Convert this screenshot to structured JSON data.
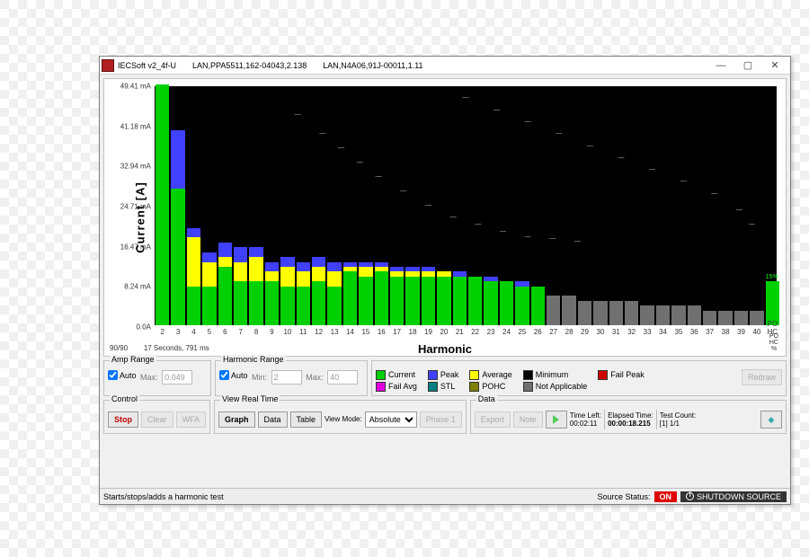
{
  "window": {
    "title": "IECSoft v2_4f-U",
    "conn1": "LAN,PPA5511,162-04043,2.138",
    "conn2": "LAN,N4A06,91J-00011,1.11",
    "min": "—",
    "max": "▢",
    "close": "✕"
  },
  "chart": {
    "ylabel": "Current [A]",
    "xlabel": "Harmonic",
    "ymax": 49.41,
    "yticks": [
      "49.41 mA",
      "41.18 mA",
      "32.94 mA",
      "24.71 mA",
      "16.47 mA",
      "8.24 mA",
      "0.0A"
    ],
    "xticks": [
      "2",
      "3",
      "4",
      "5",
      "6",
      "7",
      "8",
      "9",
      "10",
      "11",
      "12",
      "13",
      "14",
      "15",
      "16",
      "17",
      "18",
      "19",
      "20",
      "21",
      "22",
      "23",
      "24",
      "25",
      "26",
      "27",
      "28",
      "29",
      "30",
      "31",
      "32",
      "33",
      "34",
      "35",
      "36",
      "37",
      "38",
      "39",
      "40",
      "PO\nHC"
    ],
    "bars": [
      {
        "g": 49.4,
        "y": 0,
        "b": 0
      },
      {
        "g": 28,
        "y": 0,
        "b": 12
      },
      {
        "g": 8,
        "y": 10,
        "b": 2
      },
      {
        "g": 8,
        "y": 5,
        "b": 2
      },
      {
        "g": 12,
        "y": 2,
        "b": 3
      },
      {
        "g": 9,
        "y": 4,
        "b": 3
      },
      {
        "g": 9,
        "y": 5,
        "b": 2
      },
      {
        "g": 9,
        "y": 2,
        "b": 2
      },
      {
        "g": 8,
        "y": 4,
        "b": 2
      },
      {
        "g": 8,
        "y": 3,
        "b": 2
      },
      {
        "g": 9,
        "y": 3,
        "b": 2
      },
      {
        "g": 8,
        "y": 3,
        "b": 2
      },
      {
        "g": 11,
        "y": 1,
        "b": 1
      },
      {
        "g": 10,
        "y": 2,
        "b": 1
      },
      {
        "g": 11,
        "y": 1,
        "b": 1
      },
      {
        "g": 10,
        "y": 1,
        "b": 1
      },
      {
        "g": 10,
        "y": 1,
        "b": 1
      },
      {
        "g": 10,
        "y": 1,
        "b": 1
      },
      {
        "g": 10,
        "y": 1,
        "b": 0
      },
      {
        "g": 10,
        "y": 0,
        "b": 1
      },
      {
        "g": 10,
        "y": 0,
        "b": 0
      },
      {
        "g": 9,
        "y": 0,
        "b": 1
      },
      {
        "g": 9,
        "y": 0,
        "b": 0
      },
      {
        "g": 8,
        "y": 0,
        "b": 1
      },
      {
        "g": 8,
        "y": 0,
        "b": 0
      },
      {
        "g": 0,
        "y": 0,
        "b": 0,
        "gr": 6
      },
      {
        "g": 0,
        "y": 0,
        "b": 0,
        "gr": 6
      },
      {
        "g": 0,
        "y": 0,
        "b": 0,
        "gr": 5
      },
      {
        "g": 0,
        "y": 0,
        "b": 0,
        "gr": 5
      },
      {
        "g": 0,
        "y": 0,
        "b": 0,
        "gr": 5
      },
      {
        "g": 0,
        "y": 0,
        "b": 0,
        "gr": 5
      },
      {
        "g": 0,
        "y": 0,
        "b": 0,
        "gr": 4
      },
      {
        "g": 0,
        "y": 0,
        "b": 0,
        "gr": 4
      },
      {
        "g": 0,
        "y": 0,
        "b": 0,
        "gr": 4
      },
      {
        "g": 0,
        "y": 0,
        "b": 0,
        "gr": 4
      },
      {
        "g": 0,
        "y": 0,
        "b": 0,
        "gr": 3
      },
      {
        "g": 0,
        "y": 0,
        "b": 0,
        "gr": 3
      },
      {
        "g": 0,
        "y": 0,
        "b": 0,
        "gr": 3
      },
      {
        "g": 0,
        "y": 0,
        "b": 0,
        "gr": 3
      },
      {
        "g": 9,
        "y": 0,
        "b": 0,
        "label": "15%"
      }
    ],
    "markers_diag": [
      [
        23,
        88
      ],
      [
        27,
        80
      ],
      [
        30,
        74
      ],
      [
        33,
        68
      ],
      [
        36,
        62
      ],
      [
        40,
        56
      ],
      [
        44,
        50
      ],
      [
        48,
        45
      ],
      [
        52,
        42
      ],
      [
        56,
        39
      ],
      [
        60,
        37
      ],
      [
        64,
        36
      ],
      [
        68,
        35
      ]
    ],
    "markers_upper": [
      [
        50,
        95
      ],
      [
        55,
        90
      ],
      [
        60,
        85
      ],
      [
        65,
        80
      ],
      [
        70,
        75
      ],
      [
        75,
        70
      ],
      [
        80,
        65
      ],
      [
        85,
        60
      ],
      [
        90,
        55
      ],
      [
        94,
        48
      ],
      [
        96,
        42
      ]
    ],
    "colors": {
      "green": "#00d000",
      "yellow": "#ffff00",
      "blue": "#4040ff",
      "gray": "#707070",
      "magenta": "#e000e0",
      "teal": "#008080",
      "red": "#d00000",
      "black": "#000000"
    }
  },
  "info": {
    "left1": "90/90",
    "left2": "17 Seconds, 791 ms",
    "pohc": "PO\nHC\n%"
  },
  "amp_range": {
    "title": "Amp Range",
    "auto": "Auto",
    "max_label": "Max:",
    "max_val": "0.049"
  },
  "harm_range": {
    "title": "Harmonic Range",
    "auto": "Auto",
    "min_label": "Min:",
    "min_val": "2",
    "max_label": "Max:",
    "max_val": "40"
  },
  "legend": {
    "items": [
      {
        "c": "#00d000",
        "t": "Current"
      },
      {
        "c": "#4040ff",
        "t": "Peak"
      },
      {
        "c": "#ffff00",
        "t": "Average"
      },
      {
        "c": "#000000",
        "t": "Minimum"
      },
      {
        "c": "#d00000",
        "t": "Fail Peak"
      },
      {
        "c": "#e000e0",
        "t": "Fail Avg"
      },
      {
        "c": "#008080",
        "t": "STL"
      },
      {
        "c": "#808000",
        "t": "POHC"
      },
      {
        "c": "#707070",
        "t": "Not Applicable"
      }
    ],
    "redraw": "Redraw"
  },
  "control": {
    "title": "Control",
    "stop": "Stop",
    "clear": "Clear",
    "wfa": "WFA"
  },
  "view": {
    "title": "View Real Time",
    "graph": "Graph",
    "data": "Data",
    "table": "Table",
    "mode_label": "View Mode:",
    "mode_sel": "Absolute",
    "phase": "Phase 1"
  },
  "data_panel": {
    "title": "Data",
    "export": "Export",
    "note": "Note",
    "time_left_l": "Time Left:",
    "time_left": "00:02:11",
    "elapsed_l": "Elapsed Time:",
    "elapsed": "00:00:18.215",
    "count_l": "Test Count:",
    "count": "[1] 1/1"
  },
  "status": {
    "hint": "Starts/stops/adds a harmonic test",
    "src_label": "Source Status:",
    "on": "ON",
    "shutdown": "SHUTDOWN SOURCE"
  }
}
